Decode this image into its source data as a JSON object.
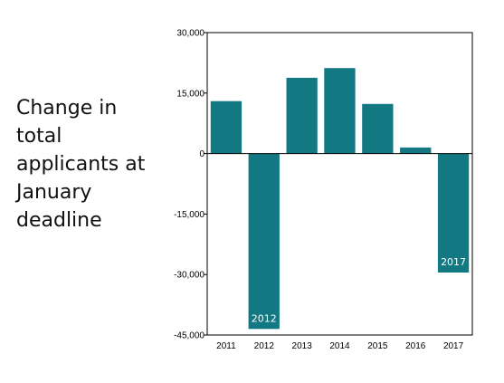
{
  "side_title_lines": [
    "Change in",
    "total",
    "applicants at",
    "January",
    "deadline"
  ],
  "colors": {
    "bar": "#127881",
    "axis": "#000000",
    "bar_label": "#ffffff"
  },
  "chart_data": {
    "type": "bar",
    "title": "",
    "xlabel": "",
    "ylabel": "",
    "categories": [
      "2011",
      "2012",
      "2013",
      "2014",
      "2015",
      "2016",
      "2017"
    ],
    "values": [
      13000,
      -43500,
      18800,
      21200,
      12300,
      1500,
      -29500
    ],
    "ylim": [
      -45000,
      30000
    ],
    "yticks": [
      30000,
      15000,
      0,
      -15000,
      -30000,
      -45000
    ],
    "ytick_labels": [
      "30,000",
      "15,000",
      "0",
      "-15,000",
      "-30,000",
      "-45,000"
    ],
    "grid": false,
    "bar_annotations": [
      {
        "category": "2012",
        "text": "2012"
      },
      {
        "category": "2017",
        "text": "2017"
      }
    ]
  }
}
